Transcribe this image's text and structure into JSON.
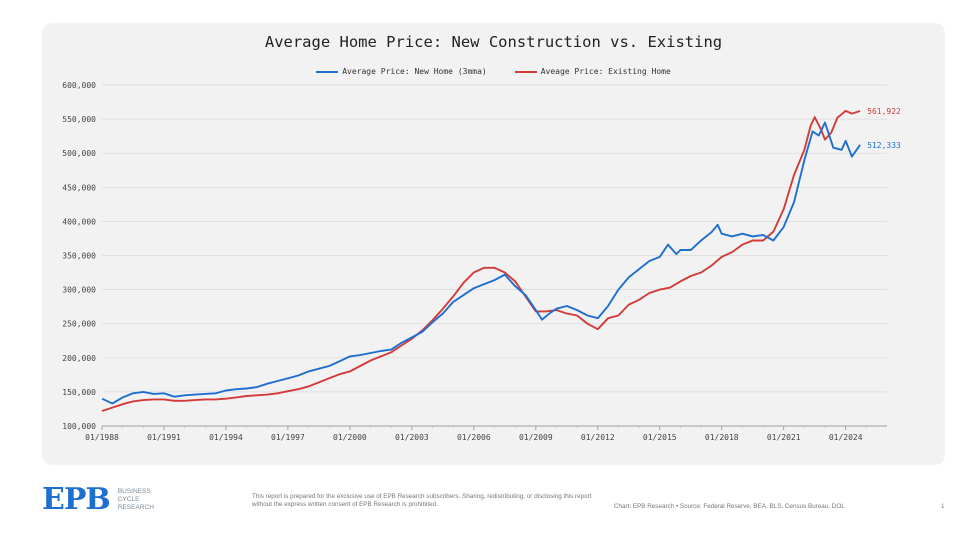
{
  "chart_data": {
    "type": "line",
    "title": "Average Home Price: New Construction vs. Existing",
    "xlabel": "",
    "ylabel": "",
    "x_range": [
      "01/1988",
      "12/2025"
    ],
    "ylim": [
      100000,
      600000
    ],
    "y_ticks": [
      "100,000",
      "150,000",
      "200,000",
      "250,000",
      "300,000",
      "350,000",
      "400,000",
      "450,000",
      "500,000",
      "550,000",
      "600,000"
    ],
    "x_ticks": [
      "01/1988",
      "01/1991",
      "01/1994",
      "01/1997",
      "01/2000",
      "01/2003",
      "01/2006",
      "01/2009",
      "01/2012",
      "01/2015",
      "01/2018",
      "01/2021",
      "01/2024"
    ],
    "grid": true,
    "legend_position": "top-center",
    "series": [
      {
        "name": "Average Price: New Home (3mma)",
        "color": "#1f6fd1",
        "end_label": "512,333",
        "points": [
          [
            1988.0,
            140000
          ],
          [
            1988.5,
            133000
          ],
          [
            1989.0,
            142000
          ],
          [
            1989.5,
            148000
          ],
          [
            1990.0,
            150000
          ],
          [
            1990.5,
            147000
          ],
          [
            1991.0,
            148000
          ],
          [
            1991.5,
            143000
          ],
          [
            1992.0,
            145000
          ],
          [
            1992.5,
            146000
          ],
          [
            1993.0,
            147000
          ],
          [
            1993.5,
            148000
          ],
          [
            1994.0,
            152000
          ],
          [
            1994.5,
            154000
          ],
          [
            1995.0,
            155000
          ],
          [
            1995.5,
            157000
          ],
          [
            1996.0,
            162000
          ],
          [
            1996.5,
            166000
          ],
          [
            1997.0,
            170000
          ],
          [
            1997.5,
            174000
          ],
          [
            1998.0,
            180000
          ],
          [
            1998.5,
            184000
          ],
          [
            1999.0,
            188000
          ],
          [
            1999.5,
            195000
          ],
          [
            2000.0,
            202000
          ],
          [
            2000.5,
            204000
          ],
          [
            2001.0,
            207000
          ],
          [
            2001.5,
            210000
          ],
          [
            2002.0,
            212000
          ],
          [
            2002.5,
            222000
          ],
          [
            2003.0,
            230000
          ],
          [
            2003.5,
            238000
          ],
          [
            2004.0,
            252000
          ],
          [
            2004.5,
            265000
          ],
          [
            2005.0,
            282000
          ],
          [
            2005.5,
            292000
          ],
          [
            2006.0,
            302000
          ],
          [
            2006.5,
            308000
          ],
          [
            2007.0,
            314000
          ],
          [
            2007.5,
            322000
          ],
          [
            2008.0,
            305000
          ],
          [
            2008.5,
            292000
          ],
          [
            2009.0,
            270000
          ],
          [
            2009.3,
            256000
          ],
          [
            2009.7,
            266000
          ],
          [
            2010.0,
            272000
          ],
          [
            2010.5,
            276000
          ],
          [
            2011.0,
            270000
          ],
          [
            2011.5,
            262000
          ],
          [
            2012.0,
            258000
          ],
          [
            2012.5,
            276000
          ],
          [
            2013.0,
            300000
          ],
          [
            2013.5,
            318000
          ],
          [
            2014.0,
            330000
          ],
          [
            2014.5,
            342000
          ],
          [
            2015.0,
            348000
          ],
          [
            2015.4,
            366000
          ],
          [
            2015.8,
            352000
          ],
          [
            2016.0,
            358000
          ],
          [
            2016.5,
            358000
          ],
          [
            2017.0,
            372000
          ],
          [
            2017.5,
            384000
          ],
          [
            2017.8,
            395000
          ],
          [
            2018.0,
            382000
          ],
          [
            2018.5,
            378000
          ],
          [
            2019.0,
            382000
          ],
          [
            2019.5,
            378000
          ],
          [
            2020.0,
            380000
          ],
          [
            2020.5,
            372000
          ],
          [
            2021.0,
            392000
          ],
          [
            2021.5,
            428000
          ],
          [
            2022.0,
            490000
          ],
          [
            2022.4,
            532000
          ],
          [
            2022.7,
            526000
          ],
          [
            2023.0,
            545000
          ],
          [
            2023.4,
            508000
          ],
          [
            2023.8,
            505000
          ],
          [
            2024.0,
            518000
          ],
          [
            2024.3,
            495000
          ],
          [
            2024.7,
            512333
          ]
        ]
      },
      {
        "name": "Aveage Price: Existing Home",
        "color": "#d33a3a",
        "end_label": "561,922",
        "points": [
          [
            1988.0,
            122000
          ],
          [
            1988.5,
            127000
          ],
          [
            1989.0,
            132000
          ],
          [
            1989.5,
            136000
          ],
          [
            1990.0,
            138000
          ],
          [
            1990.5,
            139000
          ],
          [
            1991.0,
            139000
          ],
          [
            1991.5,
            137000
          ],
          [
            1992.0,
            137000
          ],
          [
            1992.5,
            138000
          ],
          [
            1993.0,
            139000
          ],
          [
            1993.5,
            139000
          ],
          [
            1994.0,
            140000
          ],
          [
            1994.5,
            142000
          ],
          [
            1995.0,
            144000
          ],
          [
            1995.5,
            145000
          ],
          [
            1996.0,
            146000
          ],
          [
            1996.5,
            148000
          ],
          [
            1997.0,
            151000
          ],
          [
            1997.5,
            154000
          ],
          [
            1998.0,
            158000
          ],
          [
            1998.5,
            164000
          ],
          [
            1999.0,
            170000
          ],
          [
            1999.5,
            176000
          ],
          [
            2000.0,
            180000
          ],
          [
            2000.5,
            188000
          ],
          [
            2001.0,
            196000
          ],
          [
            2001.5,
            202000
          ],
          [
            2002.0,
            208000
          ],
          [
            2002.5,
            218000
          ],
          [
            2003.0,
            228000
          ],
          [
            2003.5,
            240000
          ],
          [
            2004.0,
            255000
          ],
          [
            2004.5,
            272000
          ],
          [
            2005.0,
            290000
          ],
          [
            2005.5,
            310000
          ],
          [
            2006.0,
            325000
          ],
          [
            2006.5,
            332000
          ],
          [
            2007.0,
            332000
          ],
          [
            2007.5,
            325000
          ],
          [
            2008.0,
            312000
          ],
          [
            2008.5,
            290000
          ],
          [
            2009.0,
            268000
          ],
          [
            2009.5,
            268000
          ],
          [
            2010.0,
            270000
          ],
          [
            2010.5,
            265000
          ],
          [
            2011.0,
            262000
          ],
          [
            2011.5,
            250000
          ],
          [
            2012.0,
            242000
          ],
          [
            2012.5,
            258000
          ],
          [
            2013.0,
            262000
          ],
          [
            2013.5,
            278000
          ],
          [
            2014.0,
            285000
          ],
          [
            2014.5,
            295000
          ],
          [
            2015.0,
            300000
          ],
          [
            2015.5,
            303000
          ],
          [
            2016.0,
            312000
          ],
          [
            2016.5,
            320000
          ],
          [
            2017.0,
            325000
          ],
          [
            2017.5,
            335000
          ],
          [
            2018.0,
            348000
          ],
          [
            2018.5,
            355000
          ],
          [
            2019.0,
            366000
          ],
          [
            2019.5,
            372000
          ],
          [
            2020.0,
            372000
          ],
          [
            2020.5,
            385000
          ],
          [
            2021.0,
            418000
          ],
          [
            2021.5,
            468000
          ],
          [
            2022.0,
            505000
          ],
          [
            2022.3,
            540000
          ],
          [
            2022.5,
            553000
          ],
          [
            2022.8,
            535000
          ],
          [
            2023.0,
            520000
          ],
          [
            2023.3,
            530000
          ],
          [
            2023.6,
            552000
          ],
          [
            2024.0,
            562000
          ],
          [
            2024.3,
            558000
          ],
          [
            2024.7,
            561922
          ]
        ]
      }
    ]
  },
  "footer": {
    "logo": "EPB",
    "logo_line1": "BUSINESS",
    "logo_line2": "CYCLE",
    "logo_line3": "RESEARCH",
    "disclaimer": "This report is prepared for the exclusive use of EPB Research subscribers. Sharing, redistributing, or disclosing this report without the express written consent of EPB Research is prohibited.",
    "source": "Chart: EPB Research  •  Source: Federal Reserve, BEA, BLS, Census Bureau, DOL",
    "page": "1"
  }
}
